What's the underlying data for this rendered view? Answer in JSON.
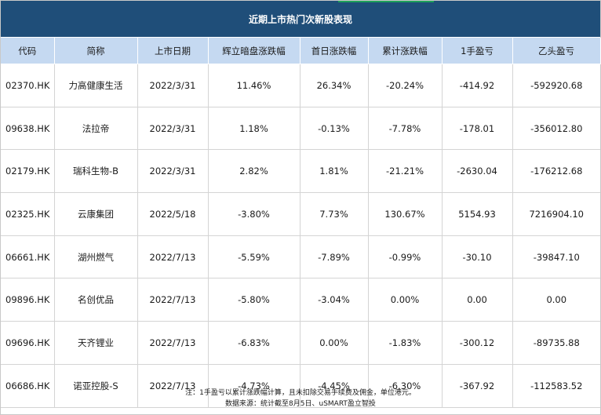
{
  "title": "近期上市热门次新股表现",
  "headers": [
    "代码",
    "简称",
    "上市日期",
    "辉立暗盘涨跌幅",
    "首日涨跌幅",
    "累计涨跌幅",
    "1手盈亏",
    "乙头盈亏"
  ],
  "rows": [
    [
      "02370.HK",
      "力高健康生活",
      "2022/3/31",
      "11.46%",
      "26.34%",
      "-20.24%",
      "-414.92",
      "-592920.68"
    ],
    [
      "09638.HK",
      "法拉帝",
      "2022/3/31",
      "1.18%",
      "-0.13%",
      "-7.78%",
      "-178.01",
      "-356012.80"
    ],
    [
      "02179.HK",
      "瑞科生物-B",
      "2022/3/31",
      "2.82%",
      "1.81%",
      "-21.21%",
      "-2630.04",
      "-176212.68"
    ],
    [
      "02325.HK",
      "云康集团",
      "2022/5/18",
      "-3.80%",
      "7.73%",
      "130.67%",
      "5154.93",
      "7216904.10"
    ],
    [
      "06661.HK",
      "湖州燃气",
      "2022/7/13",
      "-5.59%",
      "-7.89%",
      "-0.99%",
      "-30.10",
      "-39847.10"
    ],
    [
      "09896.HK",
      "名创优品",
      "2022/7/13",
      "-5.80%",
      "-3.04%",
      "0.00%",
      "0.00",
      "0.00"
    ],
    [
      "09696.HK",
      "天齐锂业",
      "2022/7/13",
      "-6.83%",
      "0.00%",
      "-1.83%",
      "-300.12",
      "-89735.88"
    ],
    [
      "06686.HK",
      "诺亚控股-S",
      "2022/7/13",
      "-4.73%",
      "-4.45%",
      "-6.30%",
      "-367.92",
      "-112583.52"
    ]
  ],
  "notes": [
    "注：1手盈亏以累计涨跌幅计算，且未扣除交易手续费及佣金，单位港元。",
    "数据来源：统计截至8月5日、uSMART盈立智投"
  ],
  "colors": {
    "title_bg": "#1f4e79",
    "header_bg": "#c5d9f1",
    "accent": "#1fa25a"
  }
}
